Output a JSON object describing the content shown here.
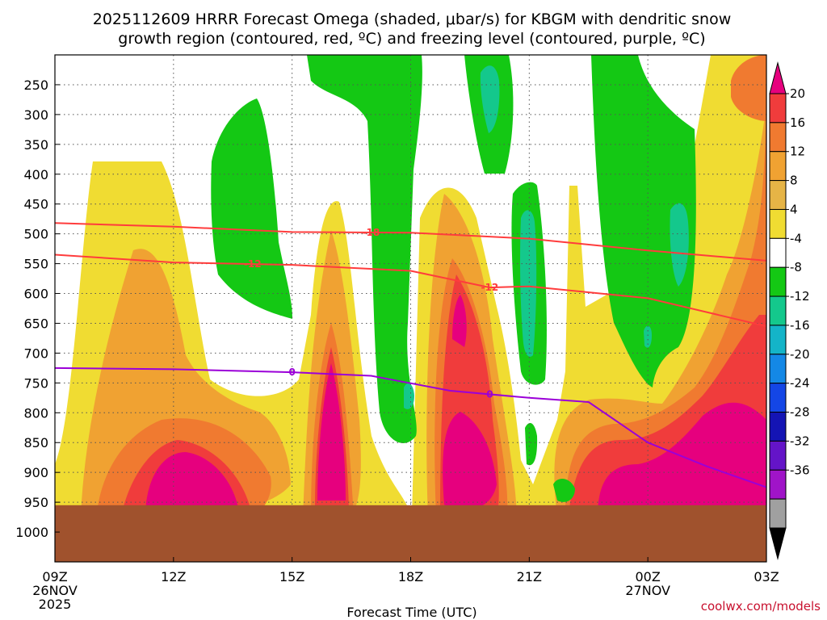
{
  "title_line1": "2025112609 HRRR Forecast Omega (shaded, μbar/s) for KBGM with dendritic snow",
  "title_line2": "growth region (contoured, red, ºC) and freezing level (contoured, purple, ºC)",
  "credit": "coolwx.com/models",
  "chart_data": {
    "type": "time-height cross-section",
    "title": "2025112609 HRRR Forecast Omega (shaded, μbar/s) for KBGM with dendritic snow growth region (contoured, red, ºC) and freezing level (contoured, purple, ºC)",
    "xlabel": "Forecast Time (UTC)",
    "ylabel": "",
    "x_range_hours": [
      0,
      18
    ],
    "y_range_hpa": [
      200,
      1050
    ],
    "y_scale": "pressure",
    "x_ticks": [
      {
        "hour": 0,
        "label": "09Z",
        "sub1": "26NOV",
        "sub2": "2025"
      },
      {
        "hour": 3,
        "label": "12Z",
        "sub1": "",
        "sub2": ""
      },
      {
        "hour": 6,
        "label": "15Z",
        "sub1": "",
        "sub2": ""
      },
      {
        "hour": 9,
        "label": "18Z",
        "sub1": "",
        "sub2": ""
      },
      {
        "hour": 12,
        "label": "21Z",
        "sub1": "",
        "sub2": ""
      },
      {
        "hour": 15,
        "label": "00Z",
        "sub1": "27NOV",
        "sub2": ""
      },
      {
        "hour": 18,
        "label": "03Z",
        "sub1": "",
        "sub2": ""
      }
    ],
    "y_ticks": [
      250,
      300,
      350,
      400,
      450,
      500,
      550,
      600,
      650,
      700,
      750,
      800,
      850,
      900,
      950,
      1000
    ],
    "grid": true,
    "ground_level_hpa": 955,
    "colorbar": {
      "placement": "right",
      "labels": [
        "20",
        "16",
        "12",
        "8",
        "4",
        "-4",
        "-8",
        "-12",
        "-16",
        "-20",
        "-24",
        "-28",
        "-32",
        "-36"
      ],
      "colors": [
        "#e6007e",
        "#f03c3c",
        "#f07a30",
        "#f0a232",
        "#e6b446",
        "#f0dc32",
        "#ffffff",
        "#14c814",
        "#14c88c",
        "#14b4c8",
        "#1488e6",
        "#1446e6",
        "#1414b4",
        "#6414c8",
        "#a014c8",
        "#a0a0a0",
        "#000000"
      ]
    },
    "contours": [
      {
        "name": "-18",
        "color": "#ff3c3c",
        "type": "dendritic",
        "points": [
          [
            0,
            482
          ],
          [
            3,
            488
          ],
          [
            6,
            497
          ],
          [
            9,
            498
          ],
          [
            12,
            508
          ],
          [
            15,
            528
          ],
          [
            18,
            545
          ]
        ],
        "labels": [
          {
            "text": "-18",
            "hour": 8.0
          }
        ]
      },
      {
        "name": "-12",
        "color": "#ff3c3c",
        "type": "dendritic",
        "points": [
          [
            0,
            535
          ],
          [
            3,
            548
          ],
          [
            6,
            552
          ],
          [
            9,
            562
          ],
          [
            11,
            590
          ],
          [
            12,
            588
          ],
          [
            15,
            608
          ],
          [
            18,
            655
          ]
        ],
        "labels": [
          {
            "text": "-12",
            "hour": 5.0
          },
          {
            "text": "-12",
            "hour": 11.0
          }
        ]
      },
      {
        "name": "0",
        "color": "#9b00d8",
        "type": "freezing",
        "points": [
          [
            0,
            725
          ],
          [
            3,
            727
          ],
          [
            6,
            732
          ],
          [
            8,
            738
          ],
          [
            10,
            763
          ],
          [
            12,
            775
          ],
          [
            13.5,
            782
          ],
          [
            15,
            850
          ],
          [
            16.5,
            890
          ],
          [
            18,
            925
          ]
        ],
        "labels": [
          {
            "text": "0",
            "hour": 6.0
          },
          {
            "text": "0",
            "hour": 11.0
          }
        ]
      }
    ]
  }
}
